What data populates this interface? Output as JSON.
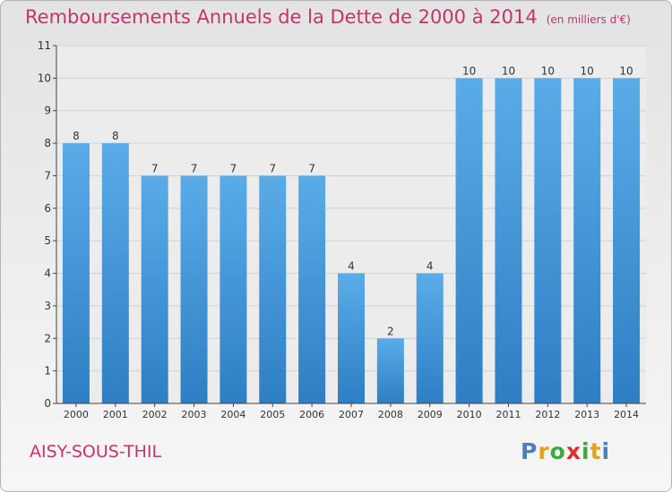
{
  "title": "Remboursements Annuels de la Dette de 2000 à 2014",
  "unit": "(en milliers d'€)",
  "commune": "AISY-SOUS-THIL",
  "logo": {
    "text": "Proxiti",
    "letters": [
      {
        "ch": "P",
        "color": "#4a7fc0"
      },
      {
        "ch": "r",
        "color": "#e8a020"
      },
      {
        "ch": "o",
        "color": "#3caa3c"
      },
      {
        "ch": "x",
        "color": "#d83030"
      },
      {
        "ch": "i",
        "color": "#3caa3c"
      },
      {
        "ch": "t",
        "color": "#e8a020"
      },
      {
        "ch": "i",
        "color": "#4a7fc0"
      }
    ]
  },
  "colors": {
    "accent": "#c8326e",
    "bar_top": "#5aace8",
    "bar_bottom": "#2e7ec4",
    "grid": "#d2d2d2",
    "axis": "#444444"
  },
  "chart_data": {
    "type": "bar",
    "categories": [
      "2000",
      "2001",
      "2002",
      "2003",
      "2004",
      "2005",
      "2006",
      "2007",
      "2008",
      "2009",
      "2010",
      "2011",
      "2012",
      "2013",
      "2014"
    ],
    "values": [
      8,
      8,
      7,
      7,
      7,
      7,
      7,
      4,
      2,
      4,
      10,
      10,
      10,
      10,
      10
    ],
    "data_labels": [
      "8",
      "8",
      "7",
      "7",
      "7",
      "7",
      "7",
      "4",
      "2",
      "4",
      "10",
      "10",
      "10",
      "10",
      "10"
    ],
    "yticks": [
      "0",
      "1",
      "2",
      "3",
      "4",
      "5",
      "6",
      "7",
      "8",
      "9",
      "10",
      "11"
    ],
    "ylim": [
      0,
      11
    ],
    "grid": true
  }
}
